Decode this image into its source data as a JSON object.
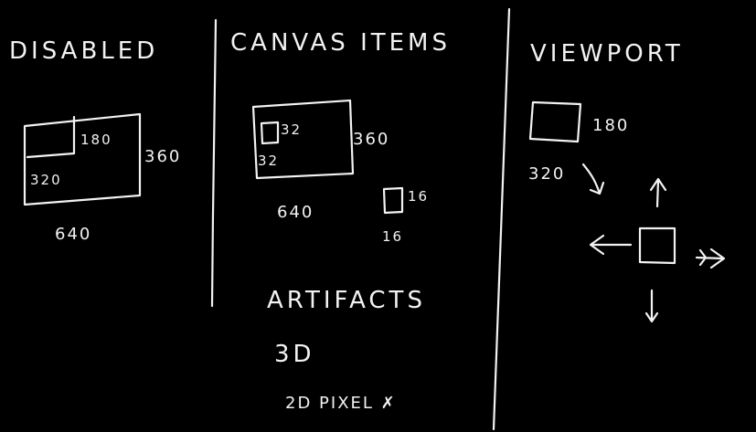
{
  "sections": {
    "disabled": {
      "title": "DISABLED",
      "inner_w": "320",
      "inner_h": "180",
      "outer_w": "640",
      "outer_h": "360"
    },
    "canvas_items": {
      "title": "CANVAS ITEMS",
      "small_box_w": "32",
      "small_box_h": "32",
      "canvas_w": "640",
      "canvas_h": "360",
      "item_w": "16",
      "item_h": "16",
      "artifacts_title": "ARTIFACTS",
      "artifact_3d": "3D",
      "artifact_2d": "2D PIXEL ✗"
    },
    "viewport": {
      "title": "VIEWPORT",
      "box_h": "180",
      "box_w": "320"
    }
  }
}
